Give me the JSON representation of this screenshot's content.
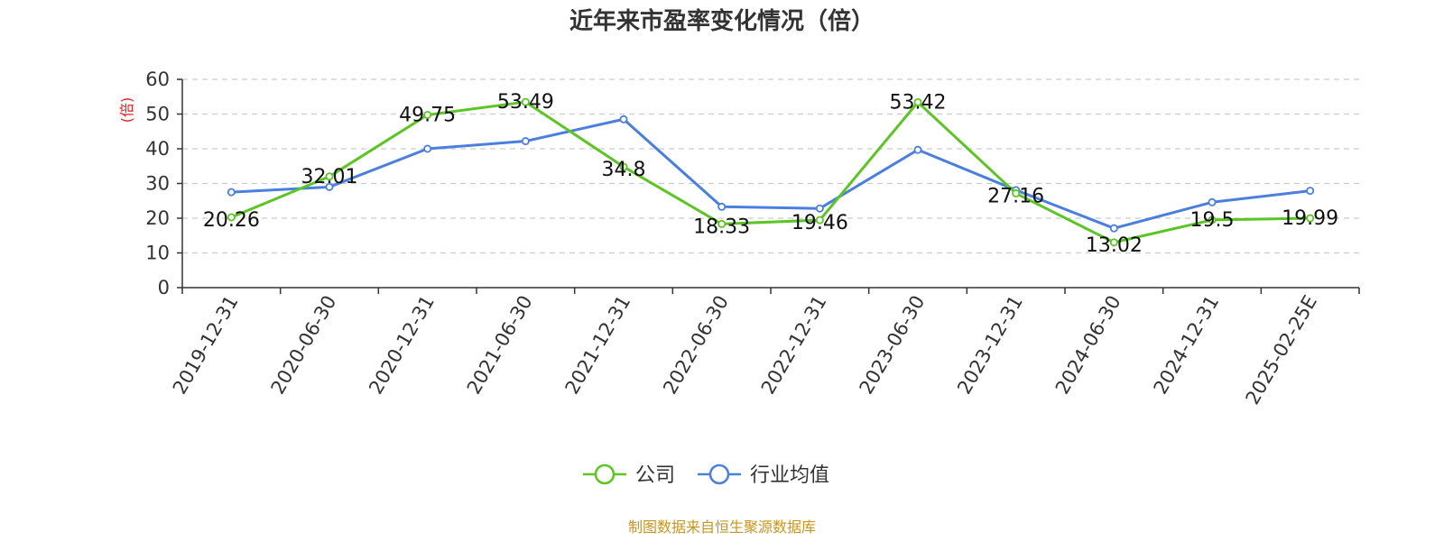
{
  "chart_data": {
    "type": "line",
    "title": "近年来市盈率变化情况（倍）",
    "ylabel": "(倍)",
    "xlabel": "",
    "ylim": [
      0,
      60
    ],
    "yticks": [
      0,
      10,
      20,
      30,
      40,
      50,
      60
    ],
    "grid": true,
    "legend_position": "bottom",
    "categories": [
      "2019-12-31",
      "2020-06-30",
      "2020-12-31",
      "2021-06-30",
      "2021-12-31",
      "2022-06-30",
      "2022-12-31",
      "2023-06-30",
      "2023-12-31",
      "2024-06-30",
      "2024-12-31",
      "2025-02-25E"
    ],
    "series": [
      {
        "name": "公司",
        "color": "#5cc524",
        "values": [
          20.26,
          32.01,
          49.75,
          53.49,
          34.8,
          18.33,
          19.46,
          53.42,
          27.16,
          13.02,
          19.5,
          19.99
        ],
        "labels": [
          "20.26",
          "32.01",
          "49.75",
          "53.49",
          "34.8",
          "18.33",
          "19.46",
          "53.42",
          "27.16",
          "13.02",
          "19.5",
          "19.99"
        ]
      },
      {
        "name": "行业均值",
        "color": "#4a7fdf",
        "values": [
          27.5,
          29.0,
          40.0,
          42.2,
          48.5,
          23.3,
          22.8,
          39.7,
          28.1,
          17.1,
          24.6,
          27.9
        ]
      }
    ]
  },
  "colors": {
    "unit_label": "#e02020",
    "source": "#c8951e",
    "axis": "#333333",
    "grid": "#cccccc"
  },
  "source_text": "制图数据来自恒生聚源数据库"
}
